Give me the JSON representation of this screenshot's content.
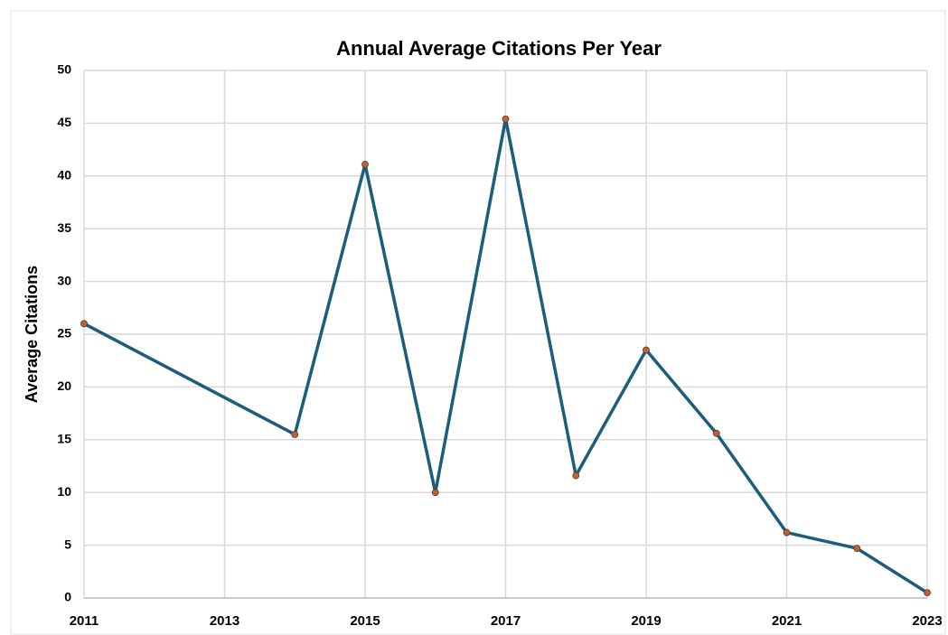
{
  "chart_data": {
    "type": "line",
    "title": "Annual Average Citations Per Year",
    "y_label": "Average Citations",
    "x": [
      2011,
      2014,
      2015,
      2016,
      2017,
      2018,
      2019,
      2020,
      2021,
      2022,
      2023
    ],
    "series": [
      {
        "name": "Average Citations",
        "color": "#1b5e7b",
        "marker_color": "#c0622f",
        "values": [
          26,
          15.5,
          41.1,
          10,
          45.4,
          11.6,
          23.5,
          15.6,
          6.2,
          4.7,
          0.5
        ]
      }
    ],
    "xlim": [
      2011,
      2023
    ],
    "xticks": [
      2011,
      2013,
      2015,
      2017,
      2019,
      2021,
      2023
    ],
    "ylim": [
      0,
      50
    ],
    "yticks": [
      0,
      5,
      10,
      15,
      20,
      25,
      30,
      35,
      40,
      45,
      50
    ],
    "grid": true
  }
}
